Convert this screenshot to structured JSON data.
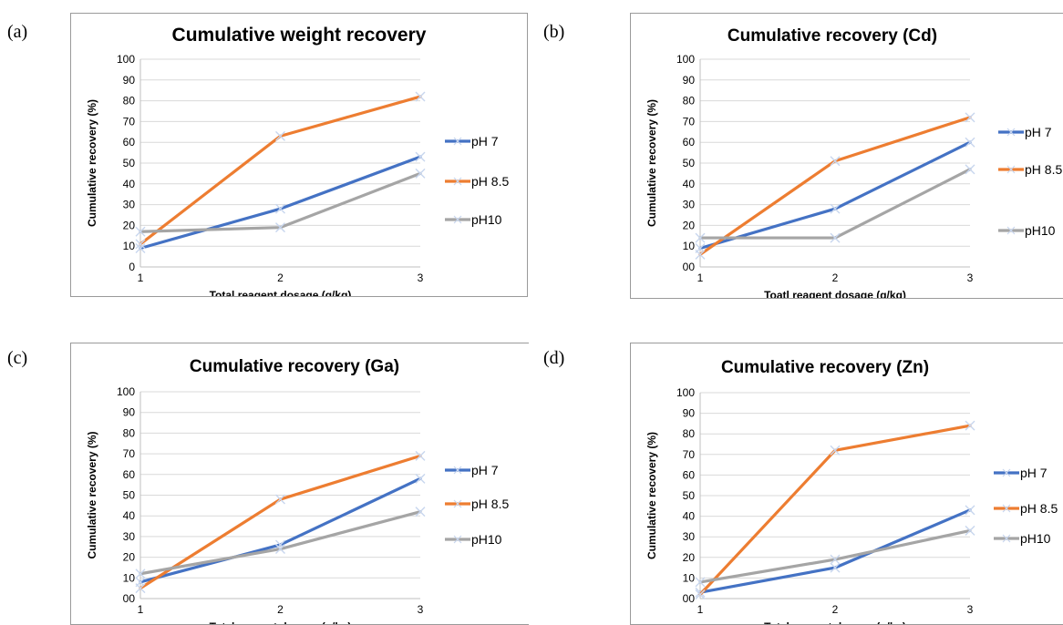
{
  "panels": [
    {
      "label": "(a)"
    },
    {
      "label": "(b)"
    },
    {
      "label": "(c)"
    },
    {
      "label": "(d)"
    }
  ],
  "chart_data": [
    {
      "type": "line",
      "title": "Cumulative weight recovery",
      "xlabel": "Total reagent dosage (g/kg)",
      "ylabel": "Cumulative recovery (%)",
      "x": [
        1,
        2,
        3
      ],
      "x_ticks": [
        "1",
        "2",
        "3"
      ],
      "y_ticks": [
        "0",
        "10",
        "20",
        "30",
        "40",
        "50",
        "60",
        "70",
        "80",
        "90",
        "100"
      ],
      "ylim": [
        0,
        100
      ],
      "grid": true,
      "legend": "right",
      "series": [
        {
          "name": "pH 7",
          "color": "#4472c4",
          "values": [
            9,
            28,
            53
          ]
        },
        {
          "name": "pH 8.5",
          "color": "#ed7d31",
          "values": [
            11,
            63,
            82
          ]
        },
        {
          "name": "pH10",
          "color": "#a5a5a5",
          "values": [
            17,
            19,
            45
          ]
        }
      ]
    },
    {
      "type": "line",
      "title": "Cumulative recovery (Cd)",
      "xlabel": "Toatl reagent dosage (g/kg)",
      "ylabel": "Cumulative recovery (%)",
      "x": [
        1,
        2,
        3
      ],
      "x_ticks": [
        "1",
        "2",
        "3"
      ],
      "y_ticks": [
        "00",
        "10",
        "20",
        "30",
        "40",
        "50",
        "60",
        "70",
        "80",
        "90",
        "100"
      ],
      "ylim": [
        0,
        100
      ],
      "grid": true,
      "legend": "right",
      "series": [
        {
          "name": "pH 7",
          "color": "#4472c4",
          "values": [
            9,
            28,
            60
          ]
        },
        {
          "name": "pH 8.5",
          "color": "#ed7d31",
          "values": [
            6,
            51,
            72
          ]
        },
        {
          "name": "pH10",
          "color": "#a5a5a5",
          "values": [
            14,
            14,
            47
          ]
        }
      ]
    },
    {
      "type": "line",
      "title": "Cumulative recovery (Ga)",
      "xlabel": "Total reagent dosage (g/kg)",
      "ylabel": "Cumulative recovery (%)",
      "x": [
        1,
        2,
        3
      ],
      "x_ticks": [
        "1",
        "2",
        "3"
      ],
      "y_ticks": [
        "00",
        "10",
        "20",
        "30",
        "40",
        "50",
        "60",
        "70",
        "80",
        "90",
        "100"
      ],
      "ylim": [
        0,
        100
      ],
      "grid": true,
      "legend": "right",
      "series": [
        {
          "name": "pH 7",
          "color": "#4472c4",
          "values": [
            8,
            26,
            58
          ]
        },
        {
          "name": "pH 8.5",
          "color": "#ed7d31",
          "values": [
            5,
            48,
            69
          ]
        },
        {
          "name": "pH10",
          "color": "#a5a5a5",
          "values": [
            12,
            24,
            42
          ]
        }
      ]
    },
    {
      "type": "line",
      "title": "Cumulative recovery (Zn)",
      "xlabel": "Total reagent dosage (g/kg)",
      "ylabel": "Cumulative recovery (%)",
      "x": [
        1,
        2,
        3
      ],
      "x_ticks": [
        "1",
        "2",
        "3"
      ],
      "y_ticks": [
        "00",
        "10",
        "20",
        "30",
        "40",
        "50",
        "60",
        "70",
        "80",
        "90",
        "100"
      ],
      "ylim": [
        0,
        100
      ],
      "grid": true,
      "legend": "right",
      "series": [
        {
          "name": "pH 7",
          "color": "#4472c4",
          "values": [
            3,
            15,
            43
          ]
        },
        {
          "name": "pH 8.5",
          "color": "#ed7d31",
          "values": [
            2,
            72,
            84
          ]
        },
        {
          "name": "pH10",
          "color": "#a5a5a5",
          "values": [
            8,
            19,
            33
          ]
        }
      ]
    }
  ]
}
